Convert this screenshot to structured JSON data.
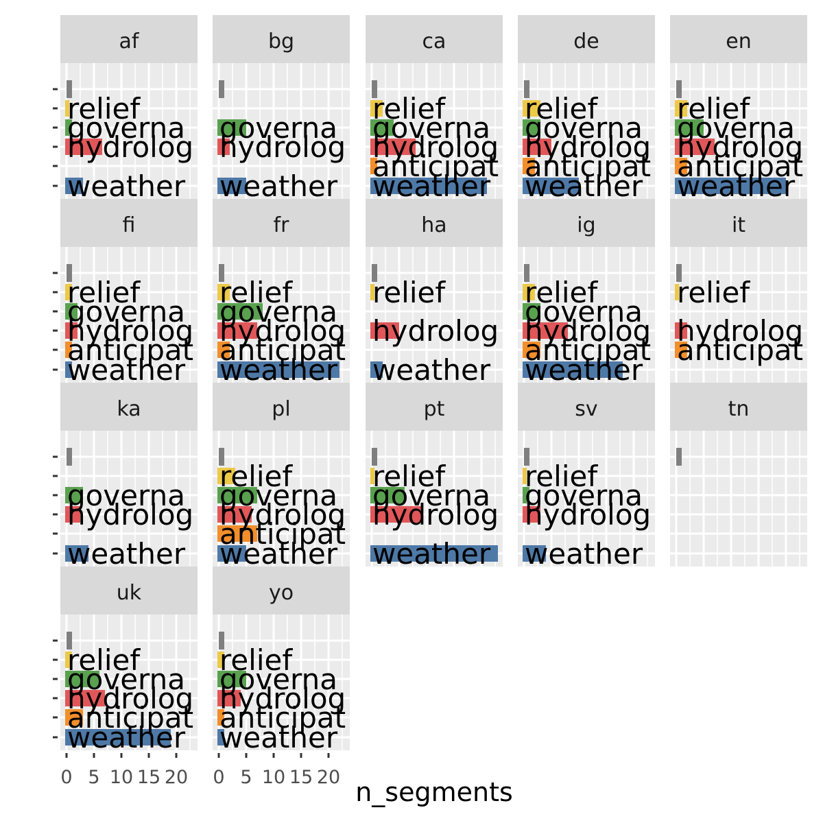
{
  "chart_data": {
    "type": "bar",
    "orientation": "horizontal",
    "facet_style": "ggplot2 facet_wrap",
    "xlabel": "n_segments",
    "ylabel": "",
    "xlim": [
      0,
      24
    ],
    "x_ticks": [
      "0",
      "5",
      "10",
      "15",
      "20"
    ],
    "tick_values": [
      0,
      5,
      10,
      15,
      20
    ],
    "grid": true,
    "category_order_top_to_bottom": [
      "(blank)",
      "relief",
      "governa",
      "hydrolog",
      "anticipat",
      "weather"
    ],
    "category_keys": [
      "blank",
      "relief",
      "governance",
      "hydrology",
      "anticipatory",
      "weather"
    ],
    "category_labels": {
      "blank": "",
      "relief": "relief",
      "governance": "governa",
      "hydrology": "hydrolog",
      "anticipatory": "anticipat",
      "weather": "weather"
    },
    "colors": {
      "blank": "#7f7f7f",
      "relief": "#edc948",
      "governance": "#59a14f",
      "hydrology": "#e15759",
      "anticipatory": "#f28e2b",
      "weather": "#4e79a7"
    },
    "panel_background": "#ebebeb",
    "strip_background": "#d9d9d9",
    "panels": [
      {
        "name": "af",
        "values": {
          "blank": 1,
          "relief": 0.5,
          "governance": 1,
          "hydrology": 6.5,
          "weather": 3
        }
      },
      {
        "name": "bg",
        "values": {
          "blank": 1,
          "governance": 5,
          "hydrology": 2,
          "weather": 5
        }
      },
      {
        "name": "ca",
        "values": {
          "blank": 1,
          "relief": 2,
          "governance": 4,
          "hydrology": 8,
          "anticipatory": 1,
          "weather": 21
        }
      },
      {
        "name": "de",
        "values": {
          "blank": 1,
          "relief": 3,
          "governance": 3,
          "hydrology": 5,
          "anticipatory": 2,
          "weather": 10
        }
      },
      {
        "name": "en",
        "values": {
          "blank": 1,
          "relief": 2,
          "governance": 5,
          "hydrology": 7,
          "anticipatory": 2,
          "weather": 20
        }
      },
      {
        "name": "fi",
        "values": {
          "blank": 1,
          "relief": 1,
          "governance": 2,
          "hydrology": 2,
          "anticipatory": 1,
          "weather": 1
        }
      },
      {
        "name": "fr",
        "values": {
          "blank": 1,
          "relief": 2,
          "governance": 8,
          "hydrology": 7,
          "anticipatory": 2,
          "weather": 22
        }
      },
      {
        "name": "ha",
        "values": {
          "blank": 1,
          "relief": 0.5,
          "hydrology": 5,
          "weather": 2
        }
      },
      {
        "name": "ig",
        "values": {
          "blank": 1,
          "relief": 2,
          "governance": 3,
          "hydrology": 8,
          "anticipatory": 3,
          "weather": 18
        }
      },
      {
        "name": "it",
        "values": {
          "blank": 1,
          "relief": 0.5,
          "hydrology": 2,
          "anticipatory": 2
        }
      },
      {
        "name": "ka",
        "values": {
          "blank": 1,
          "governance": 3,
          "hydrology": 2.5,
          "weather": 4
        }
      },
      {
        "name": "pl",
        "values": {
          "blank": 1,
          "relief": 3,
          "governance": 7,
          "hydrology": 6,
          "anticipatory": 7,
          "weather": 5
        }
      },
      {
        "name": "pt",
        "values": {
          "blank": 1,
          "relief": 0.5,
          "governance": 6,
          "hydrology": 9,
          "weather": 23
        }
      },
      {
        "name": "sv",
        "values": {
          "blank": 1,
          "relief": 0.5,
          "governance": 1,
          "hydrology": 3,
          "weather": 4
        }
      },
      {
        "name": "tn",
        "values": {
          "blank": 1
        }
      },
      {
        "name": "uk",
        "values": {
          "blank": 1,
          "relief": 1,
          "governance": 6,
          "hydrology": 7,
          "anticipatory": 3,
          "weather": 19
        }
      },
      {
        "name": "yo",
        "values": {
          "blank": 1,
          "relief": 1,
          "governance": 5,
          "hydrology": 4,
          "anticipatory": 1,
          "weather": 1
        }
      }
    ],
    "x_axis_shown_under": [
      "ca",
      "de",
      "en",
      "uk",
      "yo"
    ],
    "y_ticks_shown_on": [
      "af",
      "fi",
      "ka",
      "uk"
    ]
  }
}
